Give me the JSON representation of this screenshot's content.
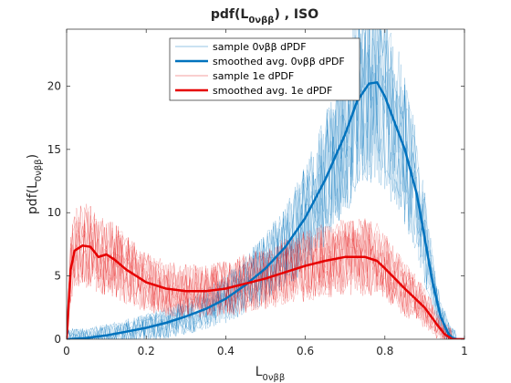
{
  "chart_data": {
    "type": "line",
    "title": {
      "base": "pdf(L",
      "sub": "0νββ",
      "suffix": ")  ,  ISO"
    },
    "xlabel": {
      "base": "L",
      "sub": "0νββ"
    },
    "ylabel": {
      "base": "pdf(L",
      "sub": "0νββ",
      "suffix": ")"
    },
    "xlim": [
      0,
      1
    ],
    "ylim": [
      0,
      24.5
    ],
    "xticks": [
      0,
      0.2,
      0.4,
      0.6,
      0.8,
      1
    ],
    "xtick_labels": [
      "0",
      "0.2",
      "0.4",
      "0.6",
      "0.8",
      "1"
    ],
    "yticks": [
      0,
      5,
      10,
      15,
      20
    ],
    "ytick_labels": [
      "0",
      "5",
      "10",
      "15",
      "20"
    ],
    "grid": false,
    "legend_position": "top-center",
    "series": [
      {
        "name": "sample 0νββ dPDF",
        "role": "sample",
        "color": "#0072bd",
        "opacity": 0.35,
        "sample_count": 12
      },
      {
        "name": "smoothed avg. 0νββ dPDF",
        "role": "average",
        "color": "#0072bd",
        "x": [
          0,
          0.05,
          0.1,
          0.15,
          0.2,
          0.25,
          0.3,
          0.35,
          0.4,
          0.45,
          0.5,
          0.55,
          0.6,
          0.65,
          0.7,
          0.73,
          0.76,
          0.78,
          0.8,
          0.82,
          0.85,
          0.88,
          0.9,
          0.92,
          0.94,
          0.96,
          0.97,
          0.98,
          1.0
        ],
        "y": [
          0,
          0.1,
          0.3,
          0.6,
          0.9,
          1.3,
          1.8,
          2.4,
          3.2,
          4.3,
          5.6,
          7.3,
          9.6,
          12.6,
          16.2,
          18.8,
          20.2,
          20.3,
          19.2,
          17.5,
          15.0,
          11.5,
          8.0,
          4.5,
          1.8,
          0.4,
          0.1,
          0,
          0
        ]
      },
      {
        "name": "sample 1e dPDF",
        "role": "sample",
        "color": "#e60000",
        "opacity": 0.3,
        "sample_count": 12
      },
      {
        "name": "smoothed avg. 1e dPDF",
        "role": "average",
        "color": "#e60000",
        "x": [
          0,
          0.01,
          0.02,
          0.04,
          0.06,
          0.08,
          0.1,
          0.12,
          0.15,
          0.2,
          0.25,
          0.3,
          0.35,
          0.4,
          0.45,
          0.5,
          0.55,
          0.6,
          0.65,
          0.7,
          0.75,
          0.78,
          0.8,
          0.85,
          0.9,
          0.93,
          0.95,
          0.97,
          1.0
        ],
        "y": [
          0,
          5.5,
          7.0,
          7.4,
          7.3,
          6.5,
          6.7,
          6.3,
          5.5,
          4.5,
          4.0,
          3.8,
          3.8,
          4.0,
          4.4,
          4.8,
          5.3,
          5.8,
          6.2,
          6.5,
          6.5,
          6.2,
          5.6,
          4.0,
          2.5,
          1.2,
          0.4,
          0,
          0
        ]
      }
    ]
  }
}
